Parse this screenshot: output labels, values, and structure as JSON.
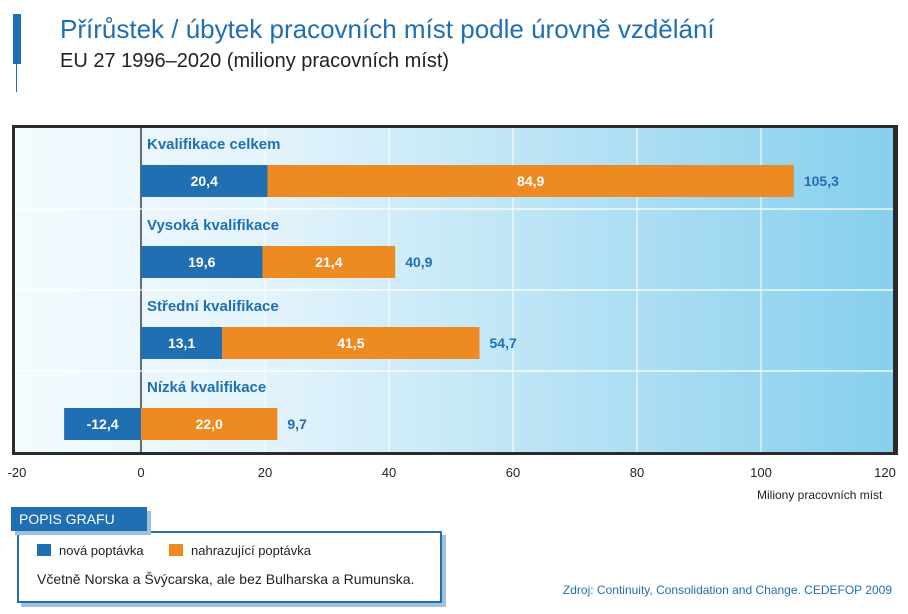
{
  "title": "Přírůstek / úbytek pracovních míst podle úrovně vzdělání",
  "subtitle": "EU 27 1996–2020 (miliony pracovních míst)",
  "unit_label": "Miliony pracovních míst",
  "legend": {
    "header": "POPIS GRAFU",
    "items": [
      "nová poptávka",
      "nahrazující poptávka"
    ],
    "note": "Včetně Norska a Švýcarska, ale bez Bulharska a Rumunska."
  },
  "source": "Zdroj: Continuity, Consolidation and Change. CEDEFOP 2009",
  "colors": {
    "new": "#1f6fb2",
    "replacement": "#ee8a22",
    "label": "#1f6fb2",
    "panel_light": "#e6f4fb",
    "panel_dark": "#8fd3ee"
  },
  "chart_data": {
    "type": "bar",
    "orientation": "horizontal",
    "stacked": true,
    "categories": [
      "Kvalifikace celkem",
      "Vysoká kvalifikace",
      "Střední kvalifikace",
      "Nízká kvalifikace"
    ],
    "series": [
      {
        "name": "nová poptávka",
        "values": [
          20.4,
          19.6,
          13.1,
          -12.4
        ],
        "labels": [
          "20,4",
          "19,6",
          "13,1",
          "-12,4"
        ]
      },
      {
        "name": "nahrazující poptávka",
        "values": [
          84.9,
          21.4,
          41.5,
          22.0
        ],
        "labels": [
          "84,9",
          "21,4",
          "41,5",
          "22,0"
        ]
      }
    ],
    "totals": [
      105.3,
      40.9,
      54.7,
      9.7
    ],
    "total_labels": [
      "105,3",
      "40,9",
      "54,7",
      "9,7"
    ],
    "xlim": [
      -20,
      120
    ],
    "xticks": [
      -20,
      0,
      20,
      40,
      60,
      80,
      100,
      120
    ],
    "xlabel": "Miliony pracovních míst",
    "grid": true
  }
}
